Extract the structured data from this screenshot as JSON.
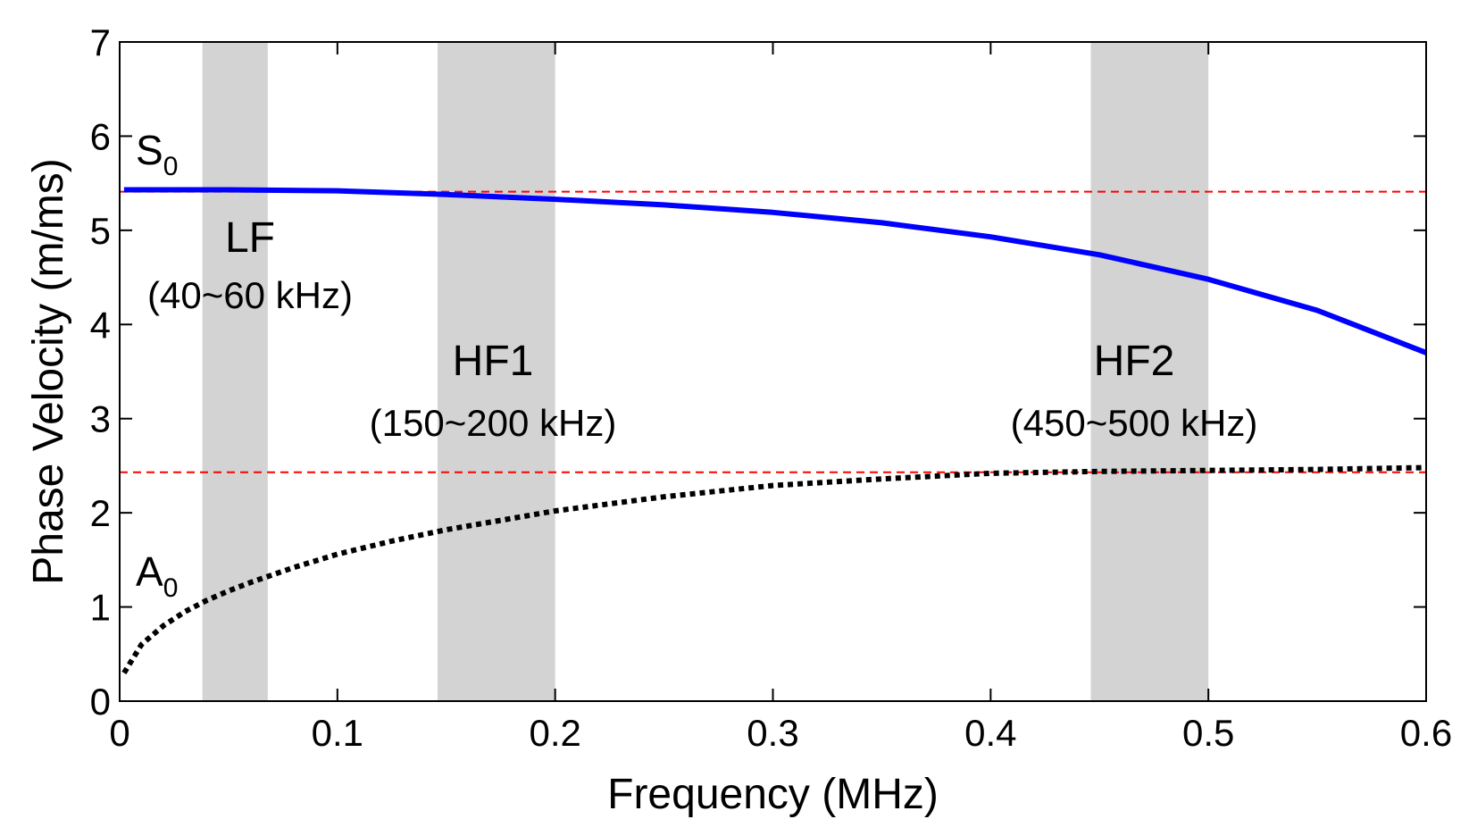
{
  "chart_data": {
    "type": "line",
    "title": "",
    "xlabel": "Frequency (MHz)",
    "ylabel": "Phase Velocity (m/ms)",
    "xlim": [
      0,
      0.6
    ],
    "ylim": [
      0,
      7
    ],
    "xticks": [
      0,
      0.1,
      0.2,
      0.3,
      0.4,
      0.5,
      0.6
    ],
    "xtick_labels": [
      "0",
      "0.1",
      "0.2",
      "0.3",
      "0.4",
      "0.5",
      "0.6"
    ],
    "yticks": [
      0,
      1,
      2,
      3,
      4,
      5,
      6,
      7
    ],
    "ytick_labels": [
      "0",
      "1",
      "2",
      "3",
      "4",
      "5",
      "6",
      "7"
    ],
    "grid": false,
    "bands": [
      {
        "name": "LF",
        "range_label": "(40~60 kHz)",
        "x0": 0.038,
        "x1": 0.068,
        "color": "#d3d3d3"
      },
      {
        "name": "HF1",
        "range_label": "(150~200 kHz)",
        "x0": 0.146,
        "x1": 0.2,
        "color": "#d3d3d3"
      },
      {
        "name": "HF2",
        "range_label": "(450~500 kHz)",
        "x0": 0.446,
        "x1": 0.5,
        "color": "#d3d3d3"
      }
    ],
    "reference_lines": [
      {
        "y": 5.41,
        "color": "#ff0000",
        "style": "dashed"
      },
      {
        "y": 2.43,
        "color": "#ff0000",
        "style": "dashed"
      }
    ],
    "series": [
      {
        "name": "S0",
        "label_main": "S",
        "label_sub": "0",
        "color": "#0000ff",
        "style": "solid",
        "x": [
          0.002,
          0.05,
          0.1,
          0.15,
          0.2,
          0.25,
          0.3,
          0.35,
          0.4,
          0.45,
          0.5,
          0.55,
          0.6
        ],
        "y": [
          5.43,
          5.43,
          5.42,
          5.38,
          5.33,
          5.27,
          5.19,
          5.08,
          4.93,
          4.74,
          4.48,
          4.15,
          3.7
        ]
      },
      {
        "name": "A0",
        "label_main": "A",
        "label_sub": "0",
        "color": "#000000",
        "style": "dotted",
        "x": [
          0.002,
          0.01,
          0.02,
          0.03,
          0.04,
          0.05,
          0.06,
          0.08,
          0.1,
          0.125,
          0.15,
          0.175,
          0.2,
          0.25,
          0.3,
          0.35,
          0.4,
          0.45,
          0.5,
          0.55,
          0.6
        ],
        "y": [
          0.3,
          0.6,
          0.8,
          0.95,
          1.07,
          1.17,
          1.26,
          1.42,
          1.56,
          1.7,
          1.82,
          1.92,
          2.02,
          2.17,
          2.29,
          2.36,
          2.42,
          2.44,
          2.45,
          2.46,
          2.48
        ]
      }
    ]
  }
}
